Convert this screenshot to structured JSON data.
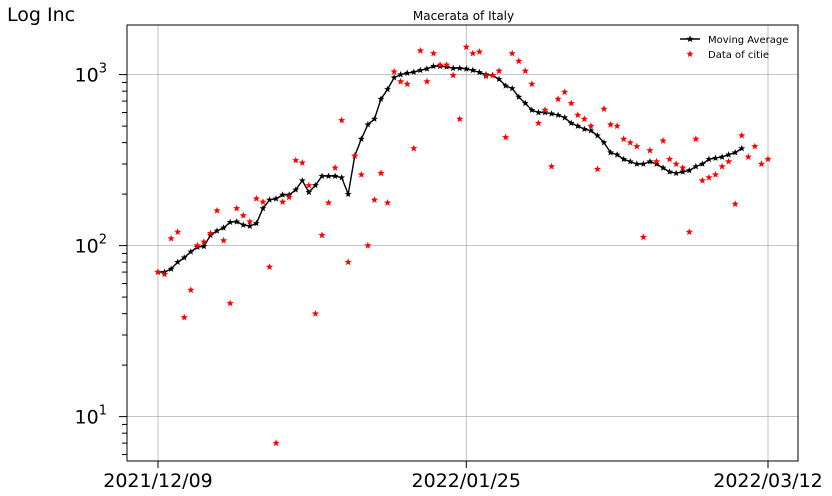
{
  "chart_data": {
    "type": "line",
    "title": "Macerata of Italy",
    "xlabel": "",
    "ylabel": "Log Inc",
    "yscale": "log",
    "ylim": [
      5.5,
      1950
    ],
    "xlim": [
      "2021-12-09",
      "2022-03-12"
    ],
    "x_tick_labels": [
      "2021/12/09",
      "2022/01/25",
      "2022/03/12"
    ],
    "y_tick_labels": [
      "10^1",
      "10^2",
      "10^3"
    ],
    "grid": true,
    "legend_position": "top-right",
    "start_date": "2021-12-09",
    "series": [
      {
        "name": "Moving Average",
        "color": "#000000",
        "marker": "star",
        "style": "line",
        "values": [
          70,
          70,
          73,
          80,
          85,
          92,
          98,
          99,
          115,
          122,
          127,
          137,
          138,
          132,
          130,
          135,
          165,
          185,
          188,
          198,
          198,
          212,
          240,
          205,
          225,
          255,
          255,
          255,
          250,
          200,
          335,
          420,
          510,
          550,
          720,
          820,
          960,
          1000,
          1020,
          1035,
          1060,
          1080,
          1120,
          1120,
          1110,
          1090,
          1090,
          1080,
          1060,
          1030,
          1000,
          990,
          940,
          860,
          830,
          740,
          680,
          620,
          600,
          600,
          590,
          580,
          560,
          520,
          500,
          480,
          470,
          440,
          400,
          350,
          340,
          320,
          310,
          300,
          300,
          310,
          300,
          285,
          270,
          265,
          270,
          275,
          290,
          300,
          320,
          325,
          330,
          340,
          350,
          370
        ]
      },
      {
        "name": "Data of citie",
        "color": "#ff0000",
        "marker": "star",
        "style": "scatter",
        "values": [
          70,
          68,
          110,
          120,
          38,
          55,
          100,
          105,
          118,
          160,
          107,
          46,
          165,
          150,
          138,
          188,
          180,
          75,
          7,
          180,
          192,
          315,
          305,
          225,
          40,
          115,
          178,
          285,
          540,
          80,
          335,
          260,
          100,
          185,
          265,
          178,
          1040,
          910,
          880,
          370,
          1380,
          910,
          1330,
          1140,
          1140,
          990,
          550,
          1450,
          1330,
          1360,
          980,
          990,
          1050,
          430,
          1330,
          1200,
          1050,
          880,
          520,
          620,
          290,
          720,
          790,
          680,
          580,
          550,
          500,
          280,
          630,
          510,
          500,
          420,
          400,
          380,
          112,
          360,
          310,
          410,
          320,
          300,
          285,
          120,
          420,
          240,
          250,
          260,
          290,
          310,
          175,
          440,
          330,
          380,
          300,
          320
        ]
      }
    ]
  }
}
